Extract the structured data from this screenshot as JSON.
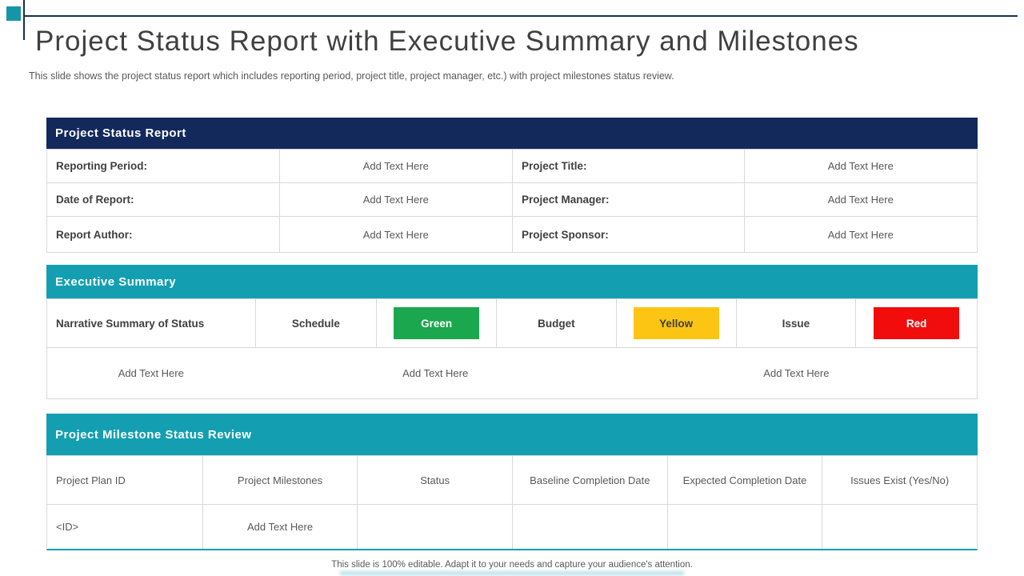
{
  "slide": {
    "title": "Project Status Report with Executive Summary and Milestones",
    "subtitle": "This slide shows the project status report which includes reporting period, project title, project manager, etc.) with project milestones status review.",
    "footer": "This slide is 100% editable.  Adapt it to your needs and capture your audience's attention."
  },
  "colors": {
    "navy": "#13295c",
    "teal": "#139fb1",
    "accent_square_teal": "#1795a8",
    "green": "#1aa74d",
    "yellow": "#fdc513",
    "red": "#f20d0d",
    "border_gray": "#d9d9d9",
    "text_dark": "#404040",
    "text_gray": "#595959"
  },
  "status_report": {
    "header": "Project Status Report",
    "rows": [
      [
        "Reporting Period:",
        "Add Text Here",
        "Project Title:",
        "Add Text Here"
      ],
      [
        "Date of Report:",
        "Add Text Here",
        "Project Manager:",
        "Add Text Here"
      ],
      [
        "Report Author:",
        "Add Text Here",
        "Project Sponsor:",
        "Add Text Here"
      ]
    ]
  },
  "executive_summary": {
    "header": "Executive Summary",
    "narrative_label": "Narrative Summary of Status",
    "metrics": [
      {
        "label": "Schedule",
        "status": "Green",
        "color": "#1aa74d"
      },
      {
        "label": "Budget",
        "status": "Yellow",
        "color": "#fdc513"
      },
      {
        "label": "Issue",
        "status": "Red",
        "color": "#f20d0d"
      }
    ],
    "placeholders": [
      "Add Text Here",
      "Add Text Here",
      "Add Text Here"
    ]
  },
  "milestones": {
    "header": "Project Milestone Status Review",
    "columns": [
      "Project Plan ID",
      "Project Milestones",
      "Status",
      "Baseline Completion Date",
      "Expected Completion Date",
      "Issues Exist (Yes/No)"
    ],
    "row": [
      "<ID>",
      "Add Text Here",
      "",
      "",
      "",
      ""
    ]
  }
}
